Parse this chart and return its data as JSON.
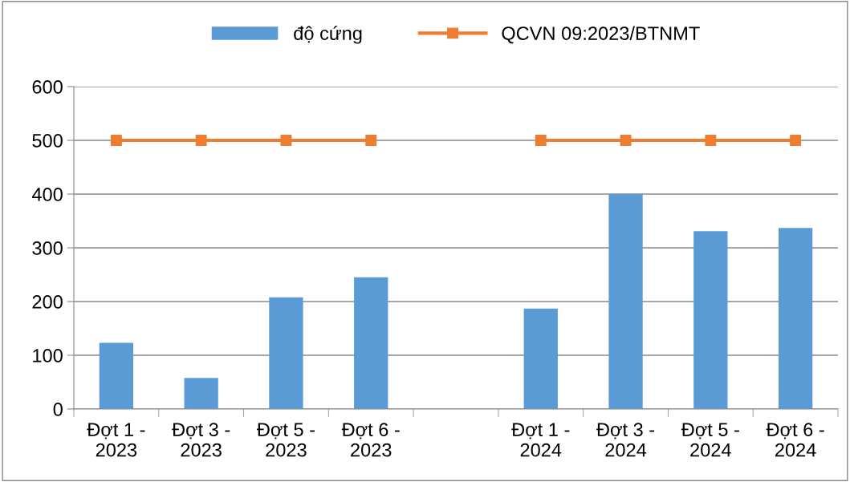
{
  "chart_data": {
    "type": "bar",
    "categories": [
      "Đợt 1 -\n2023",
      "Đợt 3 -\n2023",
      "Đợt 5 -\n2023",
      "Đợt 6 -\n2023",
      null,
      "Đợt 1 -\n2024",
      "Đợt 3 -\n2024",
      "Đợt 5 -\n2024",
      "Đợt 6 -\n2024"
    ],
    "series": [
      {
        "name": "độ cứng",
        "color": "#5b9bd5",
        "values": [
          123,
          58,
          208,
          245,
          null,
          187,
          400,
          331,
          337
        ]
      },
      {
        "name": "QCVN 09:2023/BTNMT",
        "type": "line",
        "color": "#ed7d31",
        "marker": "square",
        "values": [
          500,
          500,
          500,
          500,
          null,
          500,
          500,
          500,
          500
        ]
      }
    ],
    "ylim": [
      0,
      600
    ],
    "yticks": [
      0,
      100,
      200,
      300,
      400,
      500,
      600
    ],
    "grid": "y",
    "legend": "top"
  }
}
